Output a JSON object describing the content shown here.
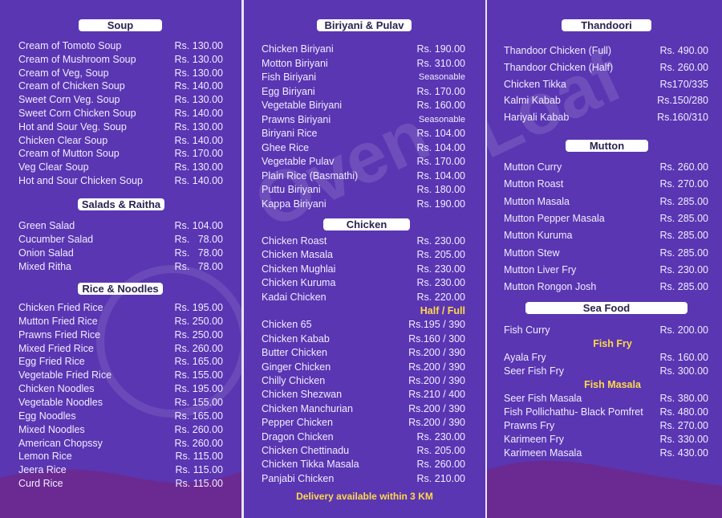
{
  "watermark": "Oven Loaf Restaurant & Bakers",
  "colors": {
    "background": "#5a36b2",
    "wave": "#6b2a92",
    "header_box": "#ffffff",
    "highlight": "#ffd84a"
  },
  "panels": [
    {
      "sections": [
        {
          "title": "Soup",
          "items": [
            {
              "name": "Cream of Tomoto Soup",
              "price": "Rs. 130.00"
            },
            {
              "name": "Cream of Mushroom Soup",
              "price": "Rs. 130.00"
            },
            {
              "name": "Cream of Veg, Soup",
              "price": "Rs. 130.00"
            },
            {
              "name": "Cream of Chicken Soup",
              "price": "Rs. 140.00"
            },
            {
              "name": "Sweet Corn Veg. Soup",
              "price": "Rs. 130.00"
            },
            {
              "name": "Sweet Corn Chicken Soup",
              "price": "Rs. 140.00"
            },
            {
              "name": "Hot and Sour Veg. Soup",
              "price": "Rs. 130.00"
            },
            {
              "name": "Chicken Clear Soup",
              "price": "Rs. 140.00"
            },
            {
              "name": "Cream of Mutton Soup",
              "price": "Rs. 170.00"
            },
            {
              "name": "Veg Clear Soup",
              "price": "Rs. 130.00"
            },
            {
              "name": "Hot and Sour Chicken  Soup",
              "price": "Rs. 140.00"
            }
          ]
        },
        {
          "title": "Salads & Raitha",
          "items": [
            {
              "name": "Green Salad",
              "price": "Rs. 104.00"
            },
            {
              "name": "Cucumber Salad",
              "price": "Rs.   78.00"
            },
            {
              "name": "Onion Salad",
              "price": "Rs.   78.00"
            },
            {
              "name": "Mixed Ritha",
              "price": "Rs.   78.00"
            }
          ]
        },
        {
          "title": "Rice & Noodles",
          "items": [
            {
              "name": "Chicken Fried Rice",
              "price": "Rs. 195.00"
            },
            {
              "name": "Mutton Fried Rice",
              "price": "Rs. 250.00"
            },
            {
              "name": "Prawns Fried Rice",
              "price": "Rs. 250.00"
            },
            {
              "name": "Mixed Fried Rice",
              "price": "Rs. 260.00"
            },
            {
              "name": "Egg Fried Rice",
              "price": "Rs. 165.00"
            },
            {
              "name": "Vegetable Fried Rice",
              "price": "Rs. 155.00"
            },
            {
              "name": "Chicken Noodles",
              "price": "Rs. 195.00"
            },
            {
              "name": "Vegetable Noodles",
              "price": "Rs. 155.00"
            },
            {
              "name": "Egg Noodles",
              "price": "Rs. 165.00"
            },
            {
              "name": "Mixed Noodles",
              "price": "Rs. 260.00"
            },
            {
              "name": "American Chopssy",
              "price": "Rs. 260.00"
            },
            {
              "name": "Lemon Rice",
              "price": "Rs. 115.00"
            },
            {
              "name": "Jeera Rice",
              "price": "Rs. 115.00"
            },
            {
              "name": "Curd Rice",
              "price": "Rs. 115.00"
            }
          ]
        }
      ]
    },
    {
      "sections": [
        {
          "title": "Biriyani & Pulav",
          "items": [
            {
              "name": "Chicken Biriyani",
              "price": "Rs. 190.00"
            },
            {
              "name": "Motton Biriyani",
              "price": "Rs. 310.00"
            },
            {
              "name": "Fish Biriyani",
              "price": "Seasonable"
            },
            {
              "name": "Egg Biriyani",
              "price": "Rs. 170.00"
            },
            {
              "name": "Vegetable Biriyani",
              "price": "Rs. 160.00"
            },
            {
              "name": "Prawns Biriyani",
              "price": "Seasonable"
            },
            {
              "name": "Biriyani Rice",
              "price": "Rs. 104.00"
            },
            {
              "name": "Ghee Rice",
              "price": "Rs. 104.00"
            },
            {
              "name": "Vegetable Pulav",
              "price": "Rs. 170.00"
            },
            {
              "name": "Plain Rice (Basmathi)",
              "price": "Rs. 104.00"
            },
            {
              "name": "Puttu Biriyani",
              "price": "Rs. 180.00"
            },
            {
              "name": "Kappa Biriyani",
              "price": "Rs. 190.00"
            }
          ]
        },
        {
          "title": "Chicken",
          "items": [
            {
              "name": "Chicken Roast",
              "price": "Rs. 230.00"
            },
            {
              "name": "Chicken Masala",
              "price": "Rs. 205.00"
            },
            {
              "name": "Chicken Mughlai",
              "price": "Rs. 230.00"
            },
            {
              "name": "Chicken Kuruma",
              "price": "Rs. 230.00"
            },
            {
              "name": "Kadai Chicken",
              "price": "Rs. 220.00"
            },
            {
              "subheading": "Half / Full"
            },
            {
              "name": "Chicken 65",
              "price": "Rs.195 / 390"
            },
            {
              "name": "Chicken  Kabab",
              "price": "Rs.160 / 300"
            },
            {
              "name": "Butter Chicken",
              "price": "Rs.200 / 390"
            },
            {
              "name": "Ginger Chicken",
              "price": "Rs.200 / 390"
            },
            {
              "name": "Chilly Chicken",
              "price": "Rs.200 / 390"
            },
            {
              "name": "Chicken Shezwan",
              "price": "Rs.210 / 400"
            },
            {
              "name": "Chicken Manchurian",
              "price": "Rs.200 / 390"
            },
            {
              "name": "Pepper Chicken",
              "price": "Rs.200 / 390"
            },
            {
              "name": "Dragon Chicken",
              "price": "Rs. 230.00"
            },
            {
              "name": "Chicken Chettinadu",
              "price": "Rs. 205.00"
            },
            {
              "name": "Chicken Tikka Masala",
              "price": "Rs. 260.00"
            },
            {
              "name": "Panjabi Chicken",
              "price": "Rs. 210.00"
            }
          ]
        }
      ],
      "footer": "Delivery available within 3 KM"
    },
    {
      "sections": [
        {
          "title": "Thandoori",
          "items": [
            {
              "name": "Thandoor Chicken (Full)",
              "price": "Rs. 490.00"
            },
            {
              "name": "Thandoor Chicken (Half)",
              "price": "Rs. 260.00"
            },
            {
              "name": "Chicken Tikka",
              "price": "Rs170/335"
            },
            {
              "name": "Kalmi Kabab",
              "price": "Rs.150/280"
            },
            {
              "name": "Hariyali Kabab",
              "price": "Rs.160/310"
            }
          ]
        },
        {
          "title": "Mutton",
          "items": [
            {
              "name": "Mutton Curry",
              "price": "Rs. 260.00"
            },
            {
              "name": "Mutton Roast",
              "price": "Rs. 270.00"
            },
            {
              "name": "Mutton Masala",
              "price": "Rs. 285.00"
            },
            {
              "name": "Mutton Pepper Masala",
              "price": "Rs. 285.00"
            },
            {
              "name": "Mutton Kuruma",
              "price": "Rs. 285.00"
            },
            {
              "name": "Mutton Stew",
              "price": "Rs. 285.00"
            },
            {
              "name": "Mutton Liver Fry",
              "price": "Rs. 230.00"
            },
            {
              "name": "Mutton Rongon Josh",
              "price": "Rs. 285.00"
            }
          ]
        },
        {
          "title": "Sea Food",
          "items": [
            {
              "name": "Fish Curry",
              "price": "Rs. 200.00"
            },
            {
              "subheading": "Fish Fry"
            },
            {
              "name": "Ayala Fry",
              "price": "Rs. 160.00"
            },
            {
              "name": "Seer Fish Fry",
              "price": "Rs. 300.00"
            },
            {
              "subheading": "Fish Masala"
            },
            {
              "name": "Seer Fish Masala",
              "price": "Rs. 380.00"
            },
            {
              "name": "Fish Pollichathu- Black Pomfret",
              "price": "Rs. 480.00"
            },
            {
              "name": "Prawns Fry",
              "price": "Rs. 270.00"
            },
            {
              "name": "Karimeen Fry",
              "price": "Rs. 330.00"
            },
            {
              "name": "Karimeen Masala",
              "price": "Rs. 430.00"
            }
          ]
        }
      ]
    }
  ]
}
